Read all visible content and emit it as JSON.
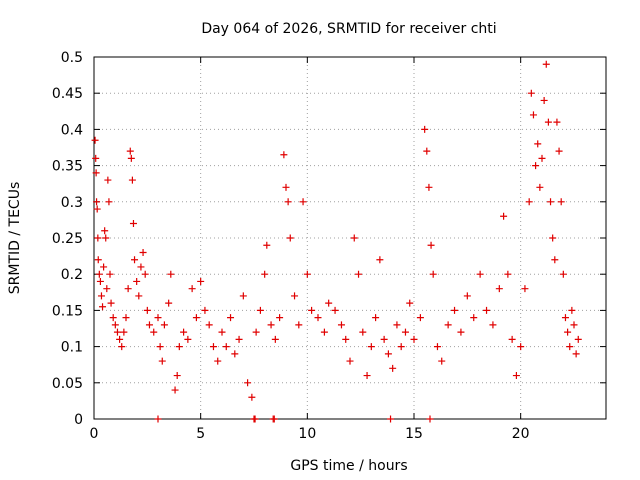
{
  "chart_data": {
    "type": "scatter",
    "title": "Day 064 of 2026, SRMTID for receiver chti",
    "xlabel": "GPS time / hours",
    "ylabel": "SRMTID / TECUs",
    "xlim": [
      0,
      24
    ],
    "ylim": [
      0,
      0.5
    ],
    "x_ticks": [
      0,
      5,
      10,
      15,
      20
    ],
    "x_tick_labels": [
      "0",
      "5",
      "10",
      "15",
      "20"
    ],
    "y_ticks": [
      0,
      0.05,
      0.1,
      0.15,
      0.2,
      0.25,
      0.3,
      0.35,
      0.4,
      0.45,
      0.5
    ],
    "y_tick_labels": [
      "0",
      "0.05",
      "0.1",
      "0.15",
      "0.2",
      "0.25",
      "0.3",
      "0.35",
      "0.4",
      "0.45",
      "0.5"
    ],
    "grid": true,
    "marker": "plus",
    "color": "#e00000",
    "series": [
      {
        "name": "SRMTID",
        "points": [
          [
            0.05,
            0.385
          ],
          [
            0.08,
            0.36
          ],
          [
            0.1,
            0.34
          ],
          [
            0.12,
            0.3
          ],
          [
            0.15,
            0.29
          ],
          [
            0.18,
            0.25
          ],
          [
            0.2,
            0.22
          ],
          [
            0.25,
            0.2
          ],
          [
            0.3,
            0.19
          ],
          [
            0.35,
            0.17
          ],
          [
            0.4,
            0.155
          ],
          [
            0.45,
            0.21
          ],
          [
            0.5,
            0.26
          ],
          [
            0.55,
            0.25
          ],
          [
            0.6,
            0.18
          ],
          [
            0.65,
            0.33
          ],
          [
            0.7,
            0.3
          ],
          [
            0.75,
            0.2
          ],
          [
            0.8,
            0.16
          ],
          [
            0.9,
            0.14
          ],
          [
            1.0,
            0.13
          ],
          [
            1.1,
            0.12
          ],
          [
            1.2,
            0.11
          ],
          [
            1.3,
            0.1
          ],
          [
            1.4,
            0.12
          ],
          [
            1.5,
            0.14
          ],
          [
            1.6,
            0.18
          ],
          [
            1.7,
            0.37
          ],
          [
            1.75,
            0.36
          ],
          [
            1.8,
            0.33
          ],
          [
            1.85,
            0.27
          ],
          [
            1.9,
            0.22
          ],
          [
            2.0,
            0.19
          ],
          [
            2.1,
            0.17
          ],
          [
            2.2,
            0.21
          ],
          [
            2.3,
            0.23
          ],
          [
            2.4,
            0.2
          ],
          [
            2.5,
            0.15
          ],
          [
            2.6,
            0.13
          ],
          [
            2.8,
            0.12
          ],
          [
            3.0,
            0.14
          ],
          [
            3.1,
            0.1
          ],
          [
            3.2,
            0.08
          ],
          [
            3.3,
            0.13
          ],
          [
            3.5,
            0.16
          ],
          [
            3.6,
            0.2
          ],
          [
            3.8,
            0.04
          ],
          [
            3.9,
            0.06
          ],
          [
            4.0,
            0.1
          ],
          [
            4.2,
            0.12
          ],
          [
            4.4,
            0.11
          ],
          [
            4.6,
            0.18
          ],
          [
            4.8,
            0.14
          ],
          [
            5.0,
            0.19
          ],
          [
            5.2,
            0.15
          ],
          [
            5.4,
            0.13
          ],
          [
            5.6,
            0.1
          ],
          [
            5.8,
            0.08
          ],
          [
            6.0,
            0.12
          ],
          [
            6.2,
            0.1
          ],
          [
            6.4,
            0.14
          ],
          [
            6.6,
            0.09
          ],
          [
            6.8,
            0.11
          ],
          [
            7.0,
            0.17
          ],
          [
            7.2,
            0.05
          ],
          [
            7.4,
            0.03
          ],
          [
            7.6,
            0.12
          ],
          [
            7.8,
            0.15
          ],
          [
            8.0,
            0.2
          ],
          [
            8.1,
            0.24
          ],
          [
            8.3,
            0.13
          ],
          [
            8.5,
            0.11
          ],
          [
            8.7,
            0.14
          ],
          [
            8.9,
            0.365
          ],
          [
            9.0,
            0.32
          ],
          [
            9.1,
            0.3
          ],
          [
            9.2,
            0.25
          ],
          [
            9.4,
            0.17
          ],
          [
            9.6,
            0.13
          ],
          [
            9.8,
            0.3
          ],
          [
            10.0,
            0.2
          ],
          [
            10.2,
            0.15
          ],
          [
            10.5,
            0.14
          ],
          [
            10.8,
            0.12
          ],
          [
            11.0,
            0.16
          ],
          [
            11.3,
            0.15
          ],
          [
            11.6,
            0.13
          ],
          [
            11.8,
            0.11
          ],
          [
            12.0,
            0.08
          ],
          [
            12.2,
            0.25
          ],
          [
            12.4,
            0.2
          ],
          [
            12.6,
            0.12
          ],
          [
            12.8,
            0.06
          ],
          [
            13.0,
            0.1
          ],
          [
            13.2,
            0.14
          ],
          [
            13.4,
            0.22
          ],
          [
            13.6,
            0.11
          ],
          [
            13.8,
            0.09
          ],
          [
            14.0,
            0.07
          ],
          [
            14.2,
            0.13
          ],
          [
            14.4,
            0.1
          ],
          [
            14.6,
            0.12
          ],
          [
            14.8,
            0.16
          ],
          [
            15.0,
            0.11
          ],
          [
            15.3,
            0.14
          ],
          [
            15.5,
            0.4
          ],
          [
            15.6,
            0.37
          ],
          [
            15.7,
            0.32
          ],
          [
            15.8,
            0.24
          ],
          [
            15.9,
            0.2
          ],
          [
            16.1,
            0.1
          ],
          [
            16.3,
            0.08
          ],
          [
            16.6,
            0.13
          ],
          [
            16.9,
            0.15
          ],
          [
            17.2,
            0.12
          ],
          [
            17.5,
            0.17
          ],
          [
            17.8,
            0.14
          ],
          [
            18.1,
            0.2
          ],
          [
            18.4,
            0.15
          ],
          [
            18.7,
            0.13
          ],
          [
            19.0,
            0.18
          ],
          [
            19.2,
            0.28
          ],
          [
            19.4,
            0.2
          ],
          [
            19.6,
            0.11
          ],
          [
            19.8,
            0.06
          ],
          [
            20.0,
            0.1
          ],
          [
            20.2,
            0.18
          ],
          [
            20.4,
            0.3
          ],
          [
            20.5,
            0.45
          ],
          [
            20.6,
            0.42
          ],
          [
            20.7,
            0.35
          ],
          [
            20.8,
            0.38
          ],
          [
            20.9,
            0.32
          ],
          [
            21.0,
            0.36
          ],
          [
            21.1,
            0.44
          ],
          [
            21.2,
            0.49
          ],
          [
            21.3,
            0.41
          ],
          [
            21.4,
            0.3
          ],
          [
            21.5,
            0.25
          ],
          [
            21.6,
            0.22
          ],
          [
            21.7,
            0.41
          ],
          [
            21.8,
            0.37
          ],
          [
            21.9,
            0.3
          ],
          [
            22.0,
            0.2
          ],
          [
            22.1,
            0.14
          ],
          [
            22.2,
            0.12
          ],
          [
            22.3,
            0.1
          ],
          [
            22.4,
            0.15
          ],
          [
            22.5,
            0.13
          ],
          [
            22.6,
            0.09
          ],
          [
            22.7,
            0.11
          ],
          [
            3.0,
            0.0
          ],
          [
            7.5,
            0.0
          ],
          [
            7.55,
            0.0
          ],
          [
            8.4,
            0.0
          ],
          [
            8.45,
            0.0
          ],
          [
            13.9,
            0.0
          ],
          [
            15.75,
            0.0
          ]
        ]
      }
    ]
  }
}
